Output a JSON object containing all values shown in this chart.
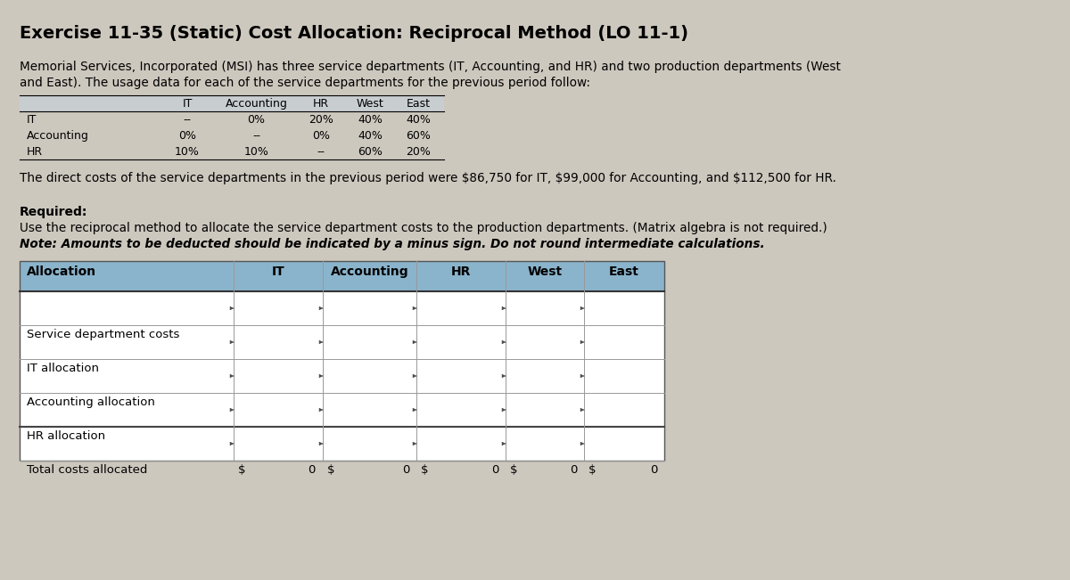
{
  "title": "Exercise 11-35 (Static) Cost Allocation: Reciprocal Method (LO 11-1)",
  "bg_color": "#cdc8be",
  "description_line1": "Memorial Services, Incorporated (MSI) has three service departments (IT, Accounting, and HR) and two production departments (West",
  "description_line2": "and East). The usage data for each of the service departments for the previous period follow:",
  "usage_table_headers": [
    "IT",
    "Accounting",
    "HR",
    "West",
    "East"
  ],
  "usage_table_rows": [
    [
      "IT",
      "--",
      "0%",
      "20%",
      "40%",
      "40%"
    ],
    [
      "Accounting",
      "0%",
      "--",
      "0%",
      "40%",
      "60%"
    ],
    [
      "HR",
      "10%",
      "10%",
      "--",
      "60%",
      "20%"
    ]
  ],
  "usage_header_bg": "#c8cdd0",
  "direct_costs_text": "The direct costs of the service departments in the previous period were $86,750 for IT, $99,000 for Accounting, and $112,500 for HR.",
  "required_label": "Required:",
  "required_text1": "Use the reciprocal method to allocate the service department costs to the production departments. (Matrix algebra is not required.)",
  "note_bold": "Note: Amounts to be deducted should be indicated by a minus sign. Do not round intermediate calculations.",
  "alloc_headers": [
    "Allocation",
    "IT",
    "Accounting",
    "HR",
    "West",
    "East"
  ],
  "alloc_header_bg": "#8ab4cc",
  "alloc_rows": [
    "Service department costs",
    "IT allocation",
    "Accounting allocation",
    "HR allocation",
    "Total costs allocated"
  ],
  "table_bg_white": "#ffffff",
  "table_border": "#999999"
}
